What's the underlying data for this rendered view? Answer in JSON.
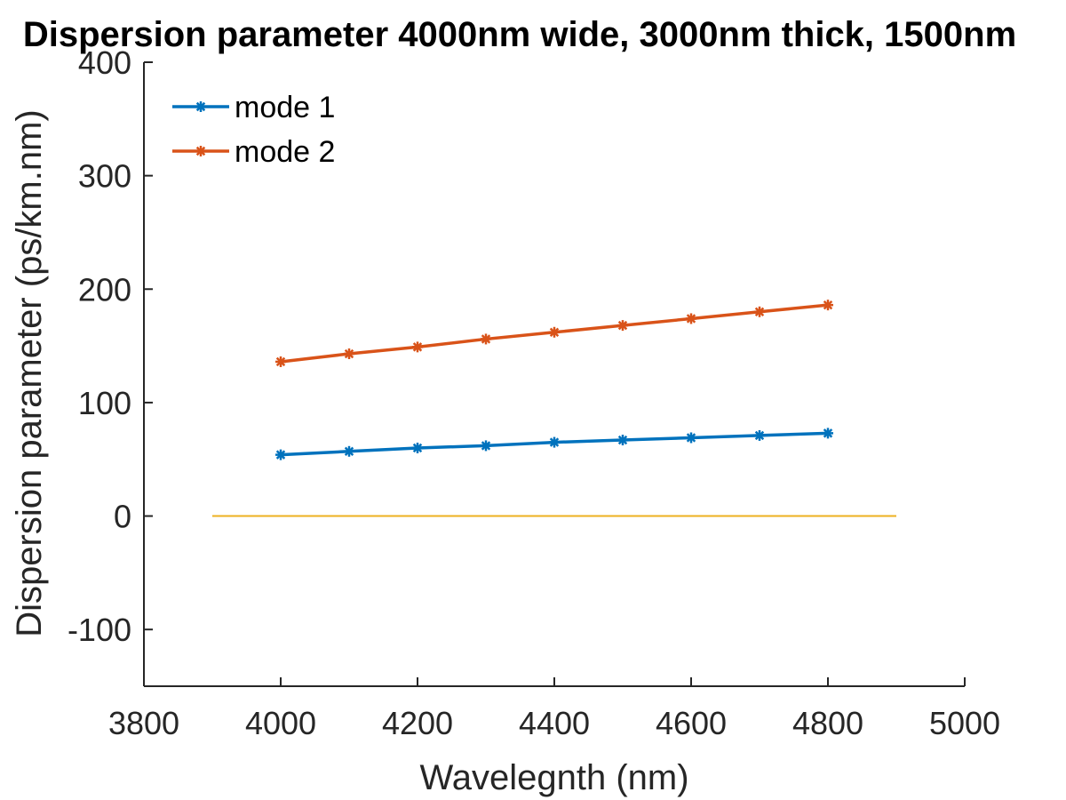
{
  "chart_data": {
    "type": "line",
    "title": "Dispersion parameter 4000nm wide, 3000nm thick, 1500nm",
    "xlabel": "Wavelegnth (nm)",
    "ylabel": "Dispersion parameter (ps/km.nm)",
    "xlim": [
      3800,
      5000
    ],
    "ylim": [
      -150,
      400
    ],
    "xticks": [
      3800,
      4000,
      4200,
      4400,
      4600,
      4800,
      5000
    ],
    "yticks": [
      -100,
      0,
      100,
      200,
      300,
      400
    ],
    "grid": false,
    "legend": {
      "position": "top-left"
    },
    "series": [
      {
        "name": "mode 1",
        "color": "#0072BD",
        "marker": "asterisk",
        "x": [
          4000,
          4100,
          4200,
          4300,
          4400,
          4500,
          4600,
          4700,
          4800
        ],
        "y": [
          54,
          57,
          60,
          62,
          65,
          67,
          69,
          71,
          73
        ]
      },
      {
        "name": "mode 2",
        "color": "#D95319",
        "marker": "asterisk",
        "x": [
          4000,
          4100,
          4200,
          4300,
          4400,
          4500,
          4600,
          4700,
          4800
        ],
        "y": [
          136,
          143,
          149,
          156,
          162,
          168,
          174,
          180,
          186
        ]
      }
    ],
    "reference_line": {
      "color": "#EDB120",
      "x": [
        3900,
        4900
      ],
      "y": [
        0,
        0
      ]
    }
  }
}
